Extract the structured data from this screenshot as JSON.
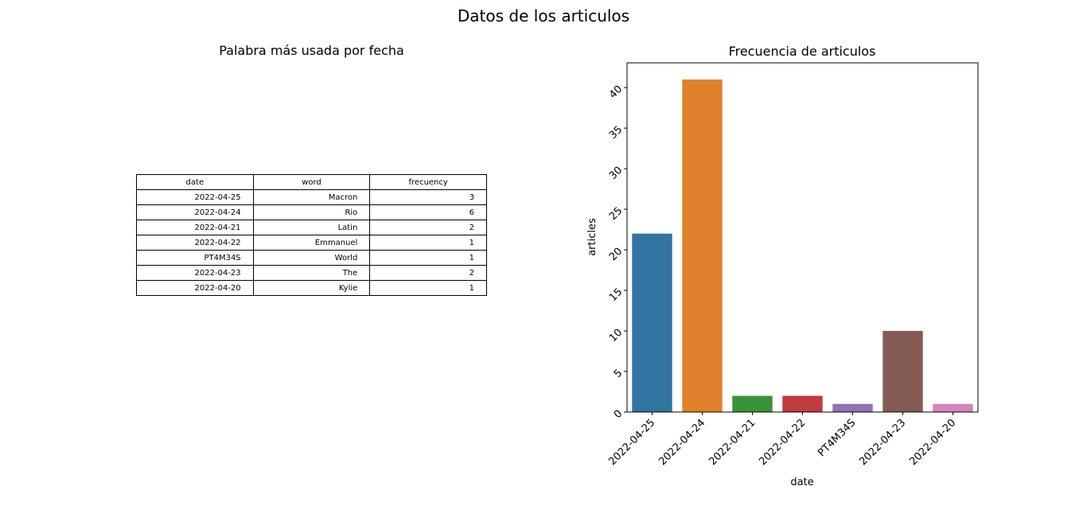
{
  "suptitle": "Datos de los articulos",
  "table_panel": {
    "title": "Palabra más usada por fecha",
    "columns": [
      "date",
      "word",
      "frecuency"
    ],
    "rows": [
      [
        "2022-04-25",
        "Macron",
        "3"
      ],
      [
        "2022-04-24",
        "Rio",
        "6"
      ],
      [
        "2022-04-21",
        "Latin",
        "2"
      ],
      [
        "2022-04-22",
        "Emmanuel",
        "1"
      ],
      [
        "PT4M34S",
        "World",
        "1"
      ],
      [
        "2022-04-23",
        "The",
        "2"
      ],
      [
        "2022-04-20",
        "Kylie",
        "1"
      ]
    ]
  },
  "chart_data": {
    "type": "bar",
    "title": "Frecuencia de articulos",
    "xlabel": "date",
    "ylabel": "articles",
    "categories": [
      "2022-04-25",
      "2022-04-24",
      "2022-04-21",
      "2022-04-22",
      "PT4M34S",
      "2022-04-23",
      "2022-04-20"
    ],
    "values": [
      22,
      41,
      2,
      2,
      1,
      10,
      1
    ],
    "colors": [
      "#3274a1",
      "#e1812c",
      "#3a923a",
      "#c03d3e",
      "#9372b2",
      "#845b53",
      "#d684bd"
    ],
    "ylim": [
      0,
      43.05
    ],
    "yticks": [
      0,
      5,
      10,
      15,
      20,
      25,
      30,
      35,
      40
    ],
    "grid": false,
    "legend": false
  }
}
